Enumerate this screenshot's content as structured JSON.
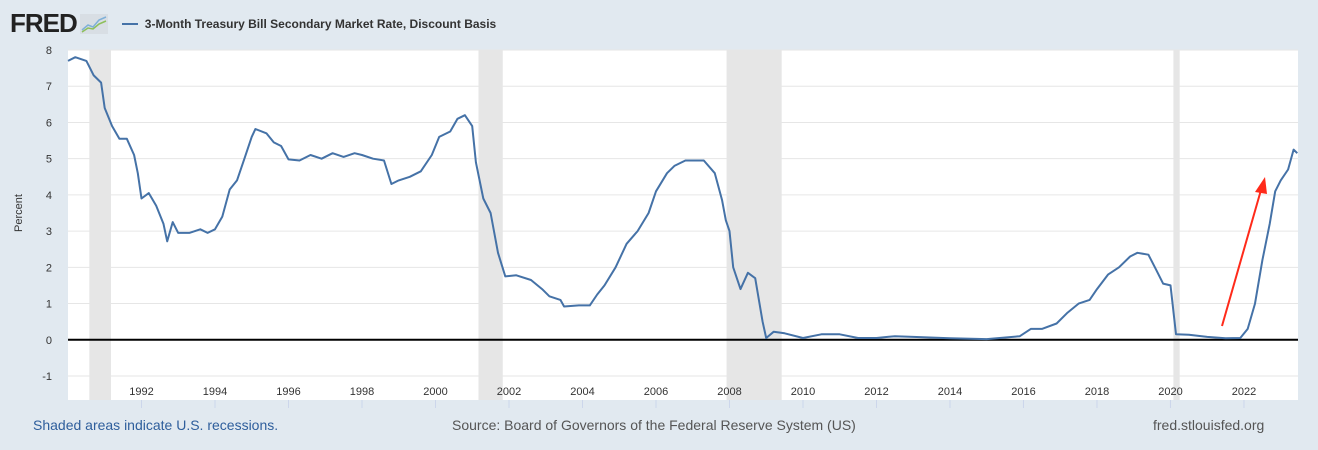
{
  "header": {
    "logo": "FRED",
    "series_title": "3-Month Treasury Bill Secondary Market Rate, Discount Basis"
  },
  "footer": {
    "recession_note": "Shaded areas indicate U.S. recessions.",
    "source": "Source: Board of Governors of the Federal Reserve System (US)",
    "site": "fred.stlouisfed.org"
  },
  "colors": {
    "series": "#4572a7",
    "recession": "#e6e6e6",
    "annotation_arrow": "#ff2a1a",
    "background": "#e1e9f0"
  },
  "chart_data": {
    "type": "line",
    "title": "",
    "ylabel": "Percent",
    "xlabel": "",
    "ylim": [
      -1,
      8
    ],
    "xlim": [
      1990.0,
      2023.47
    ],
    "yticks": [
      "8",
      "7",
      "6",
      "5",
      "4",
      "3",
      "2",
      "1",
      "0",
      "-1"
    ],
    "xticks": [
      "1992",
      "1994",
      "1996",
      "1998",
      "2000",
      "2002",
      "2004",
      "2006",
      "2008",
      "2010",
      "2012",
      "2014",
      "2016",
      "2018",
      "2020",
      "2022"
    ],
    "grid": true,
    "recessions": [
      [
        1990.58,
        1991.17
      ],
      [
        2001.17,
        2001.83
      ],
      [
        2007.92,
        2009.42
      ],
      [
        2020.08,
        2020.25
      ]
    ],
    "series": [
      {
        "name": "3-Month Treasury Bill Secondary Market Rate, Discount Basis",
        "points": [
          [
            1990.0,
            7.7
          ],
          [
            1990.2,
            7.8
          ],
          [
            1990.5,
            7.7
          ],
          [
            1990.7,
            7.3
          ],
          [
            1990.9,
            7.1
          ],
          [
            1991.0,
            6.4
          ],
          [
            1991.2,
            5.9
          ],
          [
            1991.4,
            5.55
          ],
          [
            1991.6,
            5.55
          ],
          [
            1991.8,
            5.1
          ],
          [
            1991.9,
            4.6
          ],
          [
            1992.0,
            3.9
          ],
          [
            1992.2,
            4.05
          ],
          [
            1992.4,
            3.7
          ],
          [
            1992.6,
            3.2
          ],
          [
            1992.7,
            2.72
          ],
          [
            1992.85,
            3.25
          ],
          [
            1993.0,
            2.95
          ],
          [
            1993.3,
            2.95
          ],
          [
            1993.6,
            3.05
          ],
          [
            1993.8,
            2.95
          ],
          [
            1994.0,
            3.05
          ],
          [
            1994.2,
            3.4
          ],
          [
            1994.4,
            4.15
          ],
          [
            1994.6,
            4.4
          ],
          [
            1994.8,
            5.0
          ],
          [
            1995.0,
            5.6
          ],
          [
            1995.1,
            5.82
          ],
          [
            1995.4,
            5.7
          ],
          [
            1995.6,
            5.45
          ],
          [
            1995.8,
            5.35
          ],
          [
            1996.0,
            4.98
          ],
          [
            1996.3,
            4.95
          ],
          [
            1996.6,
            5.1
          ],
          [
            1996.9,
            5.0
          ],
          [
            1997.2,
            5.15
          ],
          [
            1997.5,
            5.05
          ],
          [
            1997.8,
            5.15
          ],
          [
            1998.0,
            5.1
          ],
          [
            1998.3,
            5.0
          ],
          [
            1998.6,
            4.95
          ],
          [
            1998.8,
            4.3
          ],
          [
            1999.0,
            4.4
          ],
          [
            1999.3,
            4.5
          ],
          [
            1999.6,
            4.65
          ],
          [
            1999.9,
            5.1
          ],
          [
            2000.1,
            5.6
          ],
          [
            2000.4,
            5.75
          ],
          [
            2000.6,
            6.1
          ],
          [
            2000.8,
            6.2
          ],
          [
            2001.0,
            5.9
          ],
          [
            2001.1,
            4.9
          ],
          [
            2001.3,
            3.9
          ],
          [
            2001.5,
            3.5
          ],
          [
            2001.7,
            2.4
          ],
          [
            2001.9,
            1.75
          ],
          [
            2002.2,
            1.78
          ],
          [
            2002.6,
            1.65
          ],
          [
            2002.9,
            1.4
          ],
          [
            2003.1,
            1.2
          ],
          [
            2003.4,
            1.1
          ],
          [
            2003.5,
            0.92
          ],
          [
            2003.9,
            0.95
          ],
          [
            2004.2,
            0.95
          ],
          [
            2004.4,
            1.25
          ],
          [
            2004.6,
            1.5
          ],
          [
            2004.9,
            2.0
          ],
          [
            2005.2,
            2.65
          ],
          [
            2005.5,
            3.0
          ],
          [
            2005.8,
            3.5
          ],
          [
            2006.0,
            4.1
          ],
          [
            2006.3,
            4.6
          ],
          [
            2006.5,
            4.8
          ],
          [
            2006.8,
            4.95
          ],
          [
            2007.0,
            4.95
          ],
          [
            2007.3,
            4.95
          ],
          [
            2007.6,
            4.6
          ],
          [
            2007.8,
            3.85
          ],
          [
            2007.9,
            3.3
          ],
          [
            2008.0,
            3.0
          ],
          [
            2008.1,
            2.0
          ],
          [
            2008.3,
            1.4
          ],
          [
            2008.5,
            1.85
          ],
          [
            2008.7,
            1.7
          ],
          [
            2008.9,
            0.5
          ],
          [
            2009.0,
            0.05
          ],
          [
            2009.2,
            0.22
          ],
          [
            2009.5,
            0.18
          ],
          [
            2010.0,
            0.05
          ],
          [
            2010.5,
            0.15
          ],
          [
            2011.0,
            0.15
          ],
          [
            2011.5,
            0.05
          ],
          [
            2012.0,
            0.05
          ],
          [
            2012.5,
            0.1
          ],
          [
            2013.0,
            0.08
          ],
          [
            2014.0,
            0.04
          ],
          [
            2015.0,
            0.02
          ],
          [
            2015.9,
            0.1
          ],
          [
            2016.2,
            0.3
          ],
          [
            2016.5,
            0.3
          ],
          [
            2016.9,
            0.45
          ],
          [
            2017.2,
            0.75
          ],
          [
            2017.5,
            1.0
          ],
          [
            2017.8,
            1.1
          ],
          [
            2018.0,
            1.4
          ],
          [
            2018.3,
            1.8
          ],
          [
            2018.6,
            2.0
          ],
          [
            2018.9,
            2.3
          ],
          [
            2019.1,
            2.4
          ],
          [
            2019.4,
            2.35
          ],
          [
            2019.6,
            1.95
          ],
          [
            2019.8,
            1.55
          ],
          [
            2020.0,
            1.5
          ],
          [
            2020.15,
            0.15
          ],
          [
            2020.5,
            0.14
          ],
          [
            2021.0,
            0.08
          ],
          [
            2021.5,
            0.04
          ],
          [
            2021.9,
            0.05
          ],
          [
            2022.1,
            0.3
          ],
          [
            2022.3,
            1.0
          ],
          [
            2022.5,
            2.2
          ],
          [
            2022.7,
            3.2
          ],
          [
            2022.85,
            4.1
          ],
          [
            2023.0,
            4.4
          ],
          [
            2023.2,
            4.7
          ],
          [
            2023.35,
            5.25
          ],
          [
            2023.45,
            5.15
          ]
        ]
      }
    ]
  }
}
